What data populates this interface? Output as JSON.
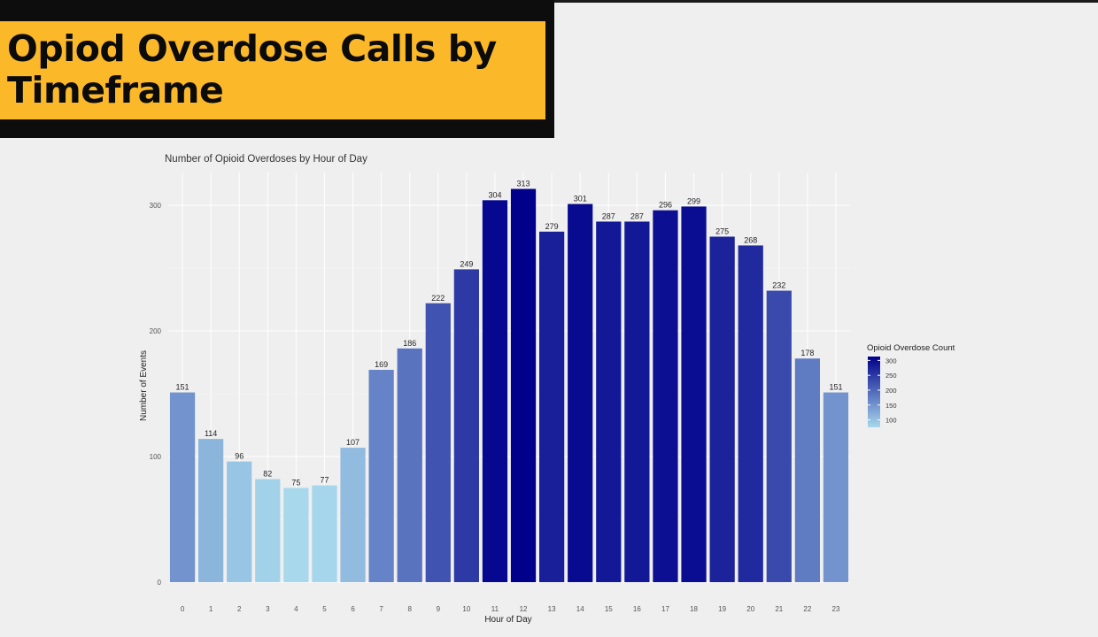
{
  "slide": {
    "title": "Opiod Overdose Calls by\nTimeframe"
  },
  "chart_data": {
    "type": "bar",
    "title": "Number of Opioid Overdoses by Hour of Day",
    "xlabel": "Hour of Day",
    "ylabel": "Number of Events",
    "categories": [
      "0",
      "1",
      "2",
      "3",
      "4",
      "5",
      "6",
      "7",
      "8",
      "9",
      "10",
      "11",
      "12",
      "13",
      "14",
      "15",
      "16",
      "17",
      "18",
      "19",
      "20",
      "21",
      "22",
      "23"
    ],
    "values": [
      151,
      114,
      96,
      82,
      75,
      77,
      107,
      169,
      186,
      222,
      249,
      304,
      313,
      279,
      301,
      287,
      287,
      296,
      299,
      275,
      268,
      232,
      178,
      151
    ],
    "ylim": [
      0,
      330
    ],
    "yticks": [
      0,
      100,
      200,
      300
    ],
    "grid": true,
    "data_labels": true,
    "legend": {
      "title": "Opioid Overdose Count",
      "placement": "right",
      "ticks": [
        300,
        250,
        200,
        150,
        100
      ],
      "color_low": "#a7d8ec",
      "color_high": "#00008b"
    },
    "colors": {
      "low": "#a7d8ec",
      "high": "#00008b"
    }
  }
}
